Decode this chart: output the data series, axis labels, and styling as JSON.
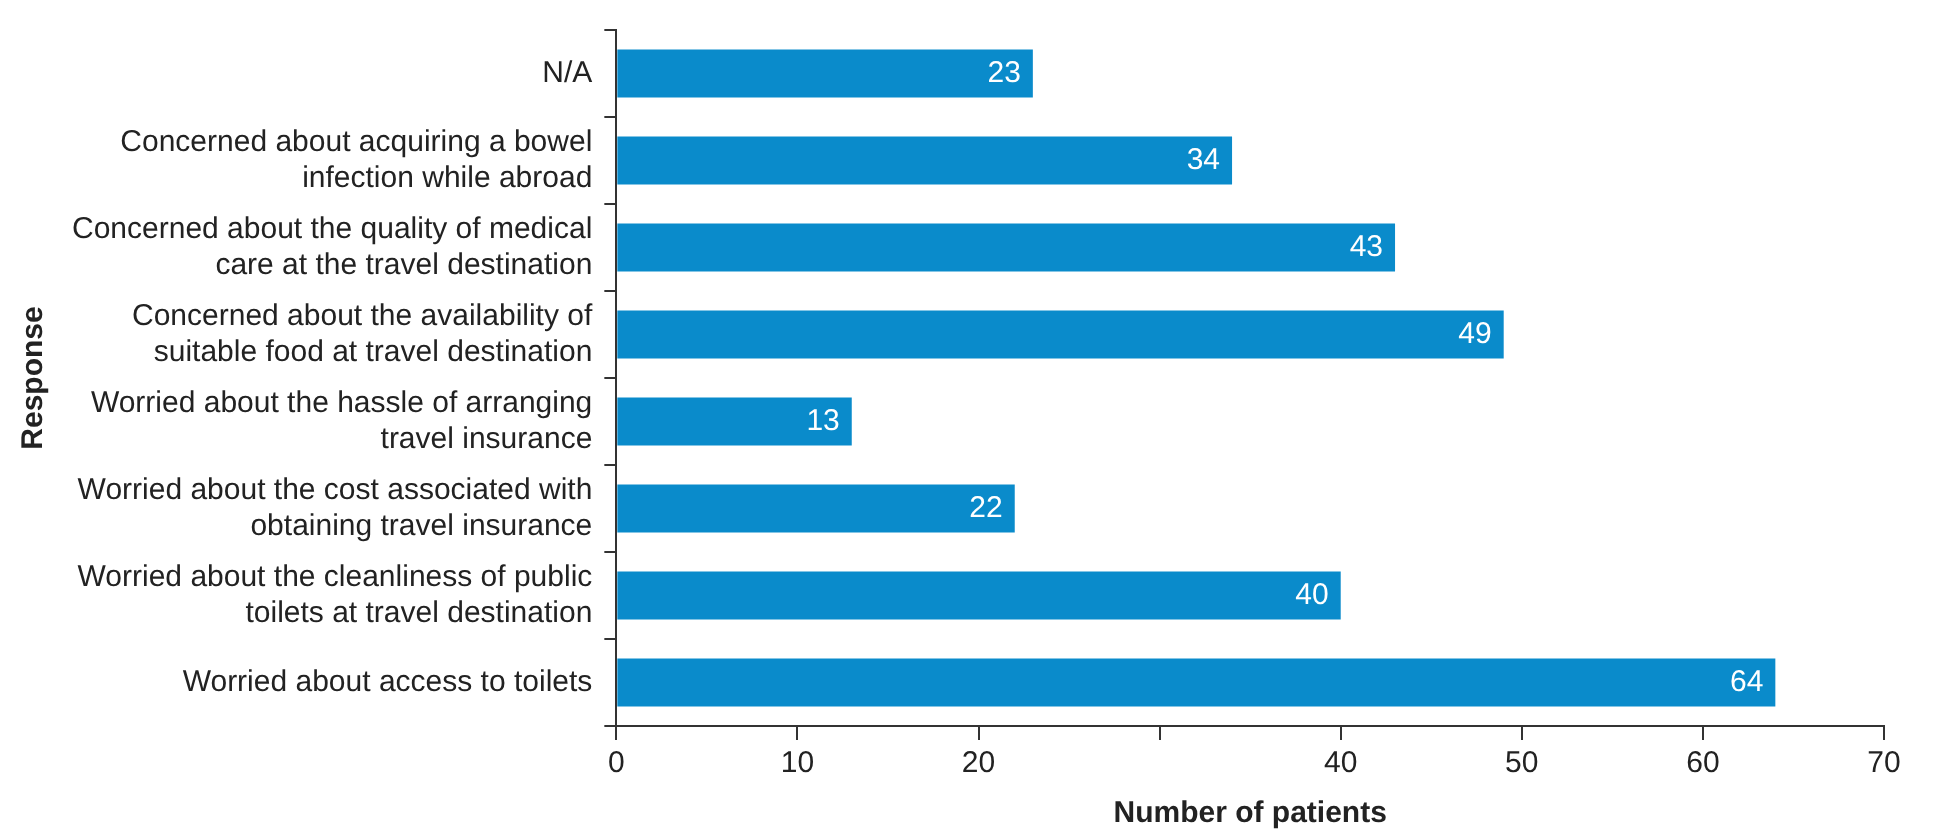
{
  "chart_data": {
    "type": "bar",
    "orientation": "horizontal",
    "xlabel": "Number of patients",
    "ylabel": "Response",
    "categories": [
      "N/A",
      "Concerned about acquiring a bowel infection while abroad",
      "Concerned about the quality of medical care at the travel destination",
      "Concerned about the availability of suitable food at travel destination",
      "Worried about the hassle of arranging travel insurance",
      "Worried about the cost associated with obtaining travel insurance",
      "Worried about the cleanliness of public toilets at travel destination",
      "Worried about access to toilets"
    ],
    "values": [
      23,
      34,
      43,
      49,
      13,
      22,
      40,
      64
    ],
    "color": "#0a8bcb",
    "data_labels": true,
    "xlim": [
      0,
      70
    ],
    "xticks": [
      0,
      10,
      20,
      {
        "value": 30,
        "label": null
      },
      40,
      50,
      60,
      70
    ],
    "grid": false,
    "legend": false
  }
}
